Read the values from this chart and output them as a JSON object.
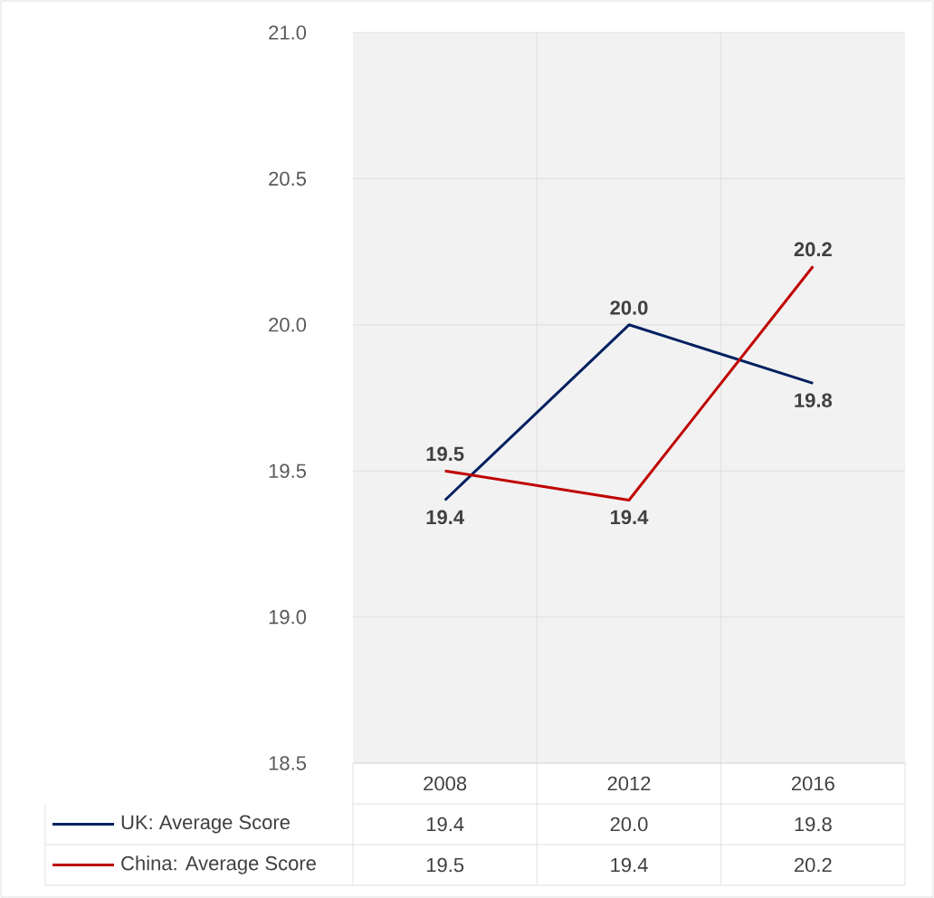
{
  "chart_data": {
    "type": "line",
    "categories": [
      "2008",
      "2012",
      "2016"
    ],
    "series": [
      {
        "name": "UK: Average Score",
        "color": "#002060",
        "values": [
          19.4,
          20.0,
          19.8
        ],
        "value_labels": [
          "19.4",
          "20.0",
          "19.8"
        ]
      },
      {
        "name": "China: Average Score",
        "color": "#c00000",
        "values": [
          19.5,
          19.4,
          20.2
        ],
        "value_labels": [
          "19.5",
          "19.4",
          "20.2"
        ]
      }
    ],
    "ylim": [
      18.5,
      21.0
    ],
    "yticks": [
      {
        "value": 18.5,
        "label": "18.5"
      },
      {
        "value": 19,
        "label": "19.0"
      },
      {
        "value": 19.5,
        "label": "19.5"
      },
      {
        "value": 20,
        "label": "20.0"
      },
      {
        "value": 20.5,
        "label": "20.5"
      },
      {
        "value": 21,
        "label": "21.0"
      }
    ],
    "grid": true,
    "legend": "bottom",
    "data_labels": true,
    "marker": "none",
    "line_style": "solid"
  }
}
